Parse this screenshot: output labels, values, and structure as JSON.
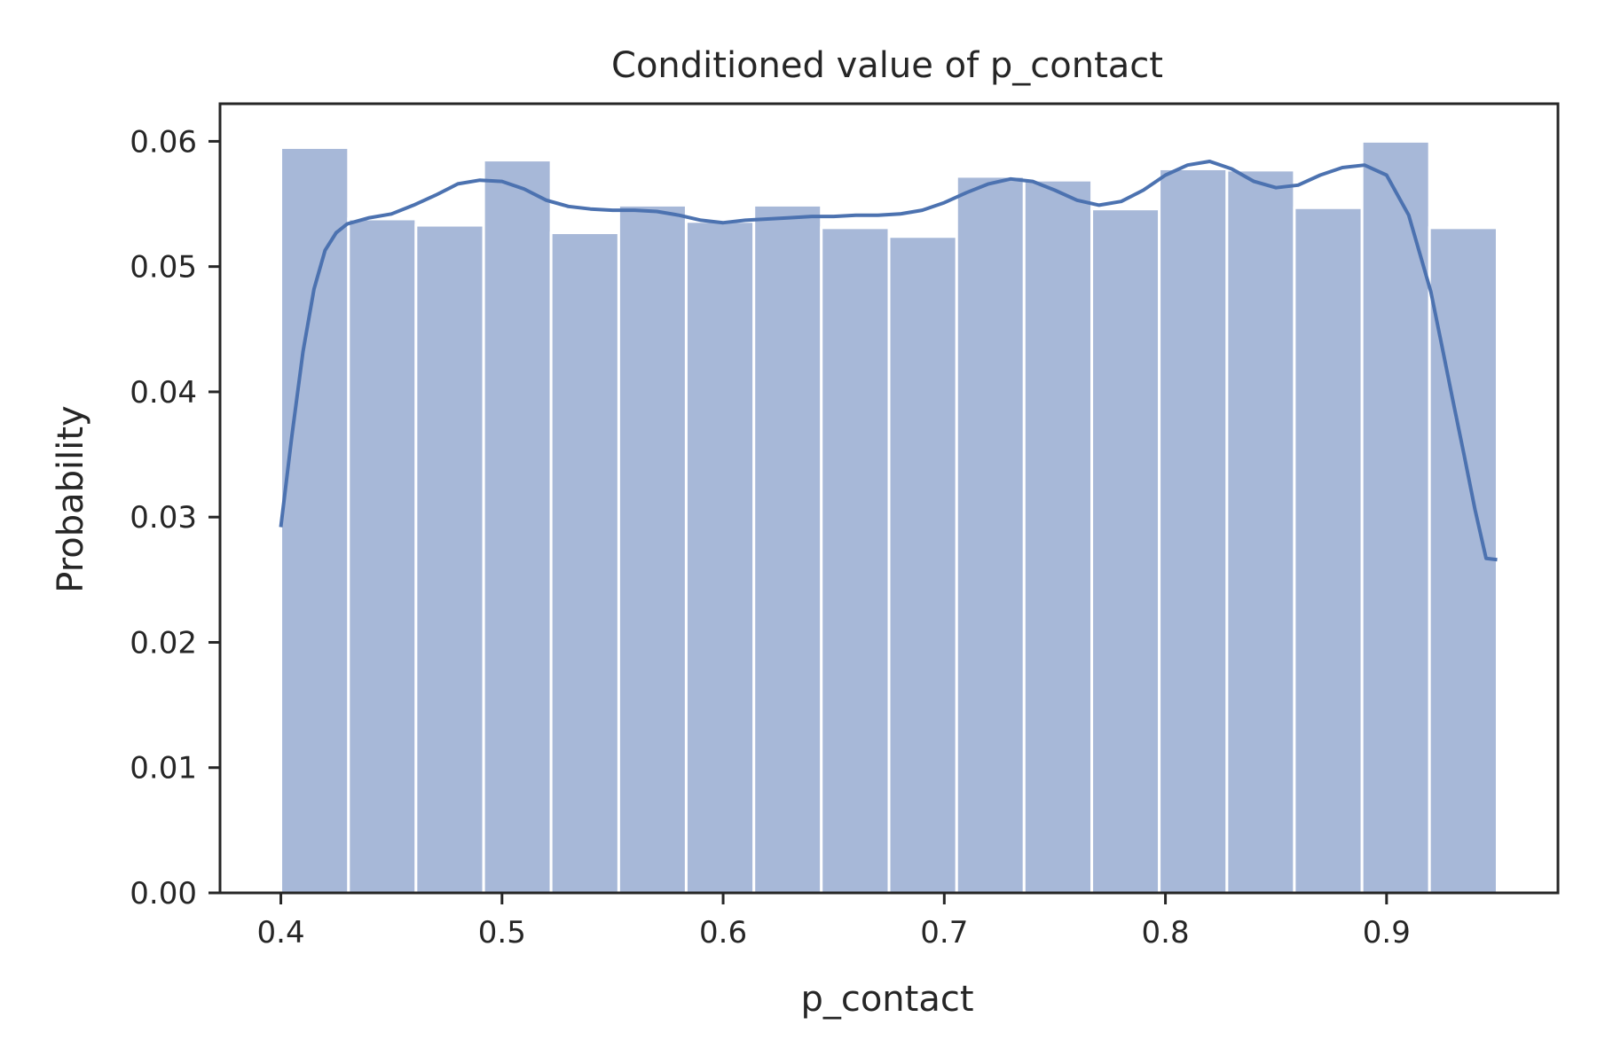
{
  "chart_data": {
    "type": "bar",
    "title": "Conditioned value of p_contact",
    "xlabel": "p_contact",
    "ylabel": "Probability",
    "xlim": [
      0.3725,
      0.9775
    ],
    "ylim": [
      0.0,
      0.063
    ],
    "xticks": [
      "0.4",
      "0.5",
      "0.6",
      "0.7",
      "0.8",
      "0.9"
    ],
    "yticks": [
      "0.00",
      "0.01",
      "0.02",
      "0.03",
      "0.04",
      "0.05",
      "0.06"
    ],
    "bin_edges": [
      0.4,
      0.4306,
      0.4611,
      0.4917,
      0.5222,
      0.5528,
      0.5833,
      0.6139,
      0.6444,
      0.675,
      0.7056,
      0.7361,
      0.7667,
      0.7972,
      0.8278,
      0.8583,
      0.8889,
      0.9194,
      0.95
    ],
    "values": [
      0.0595,
      0.0538,
      0.0533,
      0.0585,
      0.0527,
      0.0549,
      0.0536,
      0.0549,
      0.0531,
      0.0524,
      0.0572,
      0.0569,
      0.0546,
      0.0578,
      0.0577,
      0.0547,
      0.06,
      0.0531
    ],
    "kde": {
      "x": [
        0.4,
        0.405,
        0.41,
        0.415,
        0.42,
        0.425,
        0.43,
        0.44,
        0.45,
        0.46,
        0.47,
        0.48,
        0.49,
        0.5,
        0.51,
        0.52,
        0.53,
        0.54,
        0.55,
        0.56,
        0.57,
        0.58,
        0.59,
        0.6,
        0.61,
        0.62,
        0.63,
        0.64,
        0.65,
        0.66,
        0.67,
        0.68,
        0.69,
        0.7,
        0.71,
        0.72,
        0.73,
        0.74,
        0.75,
        0.76,
        0.77,
        0.78,
        0.79,
        0.8,
        0.81,
        0.82,
        0.83,
        0.84,
        0.85,
        0.86,
        0.87,
        0.88,
        0.89,
        0.9,
        0.91,
        0.92,
        0.925,
        0.93,
        0.935,
        0.94,
        0.945,
        0.95
      ],
      "y": [
        0.0292,
        0.0365,
        0.0432,
        0.0482,
        0.0513,
        0.0527,
        0.0534,
        0.0539,
        0.0542,
        0.0549,
        0.0557,
        0.0566,
        0.0569,
        0.0568,
        0.0562,
        0.0553,
        0.0548,
        0.0546,
        0.0545,
        0.0545,
        0.0544,
        0.0541,
        0.0537,
        0.0535,
        0.0537,
        0.0538,
        0.0539,
        0.054,
        0.054,
        0.0541,
        0.0541,
        0.0542,
        0.0545,
        0.0551,
        0.0559,
        0.0566,
        0.057,
        0.0568,
        0.0561,
        0.0553,
        0.0549,
        0.0552,
        0.0561,
        0.0573,
        0.0581,
        0.0584,
        0.0578,
        0.0568,
        0.0563,
        0.0565,
        0.0573,
        0.0579,
        0.0581,
        0.0573,
        0.0541,
        0.048,
        0.0437,
        0.0393,
        0.035,
        0.0306,
        0.0267,
        0.0266
      ]
    },
    "colors": {
      "bar": "#a7b8d8",
      "line": "#4c72b0",
      "frame": "#262626"
    },
    "grid": false,
    "legend": "none"
  }
}
